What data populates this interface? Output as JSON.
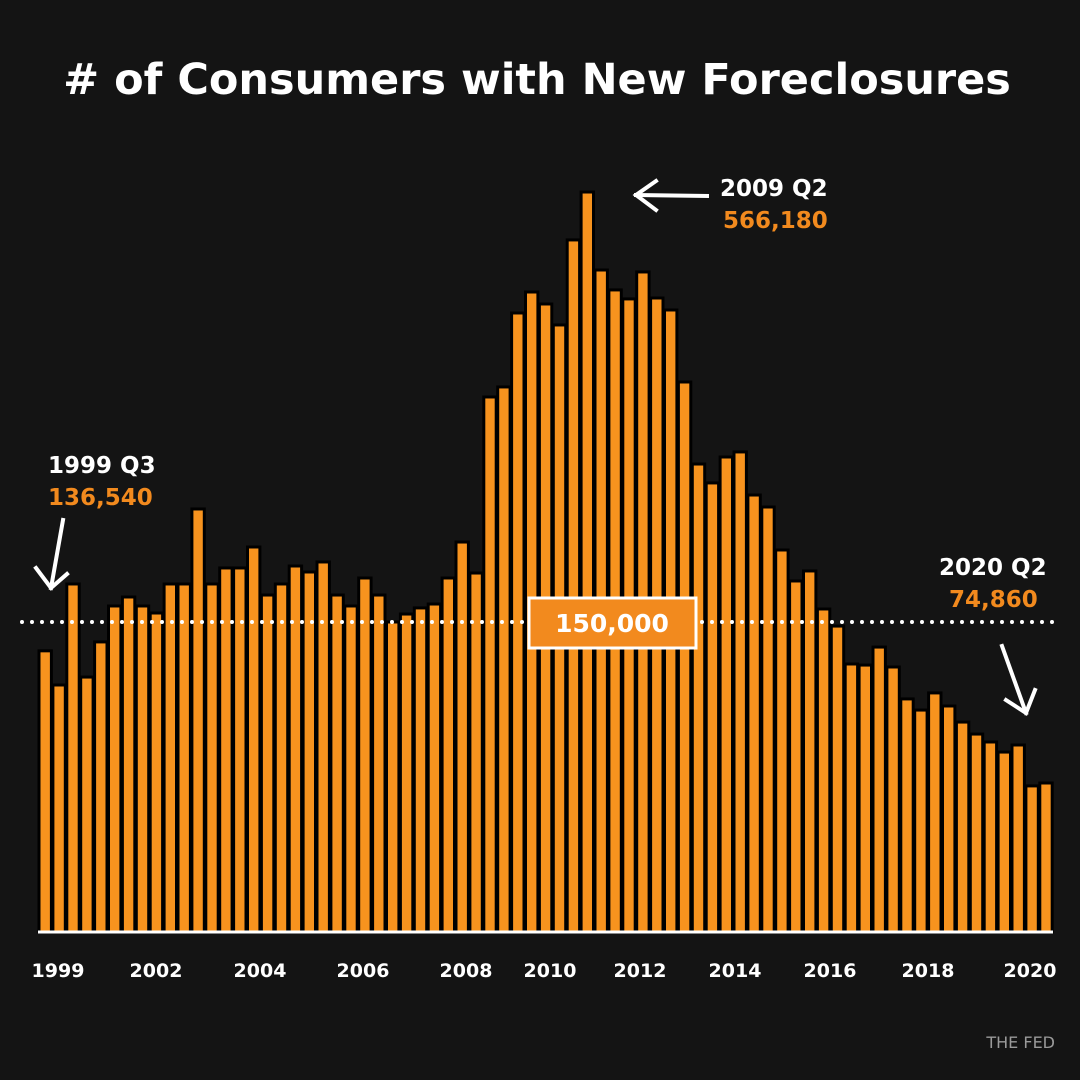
{
  "chart_data": {
    "type": "bar",
    "title": "# of Consumers with New Foreclosures",
    "x_tick_labels": [
      "1999",
      "2002",
      "2004",
      "2006",
      "2008",
      "2010",
      "2012",
      "2014",
      "2016",
      "2018",
      "2020"
    ],
    "values": [
      136540,
      120600,
      186800,
      124300,
      140700,
      165500,
      174200,
      165500,
      158700,
      186800,
      186800,
      259400,
      186800,
      202300,
      202300,
      222600,
      176100,
      186800,
      204200,
      198400,
      208100,
      176100,
      165500,
      192600,
      176100,
      150000,
      157700,
      163600,
      167400,
      192600,
      227400,
      197400,
      367800,
      377500,
      449100,
      469400,
      457800,
      437500,
      519800,
      566180,
      490700,
      471400,
      462700,
      488800,
      463600,
      452000,
      382300,
      302900,
      284600,
      309700,
      314600,
      272900,
      261300,
      219700,
      189700,
      199400,
      162600,
      148100,
      130400,
      129900,
      138300,
      129000,
      114100,
      108900,
      116900,
      110800,
      103300,
      97700,
      94000,
      89300,
      92600,
      73500,
      74860
    ],
    "reference_line": {
      "value": 150000,
      "label": "150,000",
      "style": "dotted"
    },
    "annotations": [
      {
        "period": "1999 Q3",
        "value_label": "136,540"
      },
      {
        "period": "2009 Q2",
        "value_label": "566,180"
      },
      {
        "period": "2020 Q2",
        "value_label": "74,860"
      }
    ],
    "xlabel": "",
    "ylabel": "",
    "grid": false,
    "colors": {
      "background": "#141414",
      "bar": "#f7931e",
      "bar_outline": "#000000",
      "highlight_text": "#f28a1e",
      "text": "#ffffff"
    }
  },
  "source": "THE FED"
}
